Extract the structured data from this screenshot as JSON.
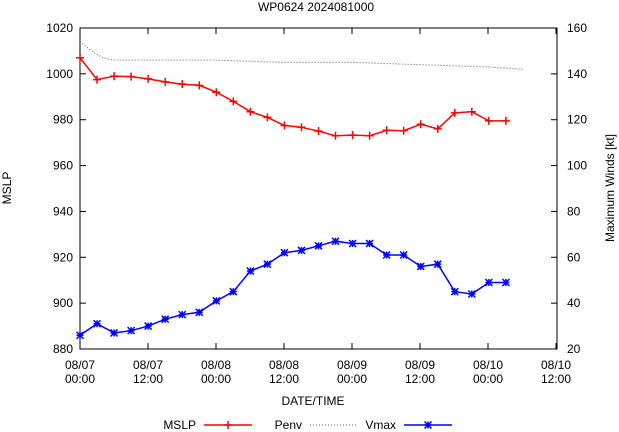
{
  "chart_data": {
    "type": "line",
    "title": "WP0624 2024081000",
    "xlabel": "DATE/TIME",
    "ylabel_left": "MSLP",
    "ylabel_right": "Maximum Winds [kt]",
    "ylim_left": [
      880,
      1020
    ],
    "ylim_right": [
      20,
      160
    ],
    "xlim_hours": [
      0,
      84
    ],
    "grid": false,
    "legend_position": "bottom",
    "yticks_left": [
      "880",
      "900",
      "920",
      "940",
      "960",
      "980",
      "1000",
      "1020"
    ],
    "yticks_right": [
      "20",
      "40",
      "60",
      "80",
      "100",
      "120",
      "140",
      "160"
    ],
    "xticks": [
      {
        "date": "08/07",
        "time": "00:00"
      },
      {
        "date": "08/07",
        "time": "12:00"
      },
      {
        "date": "08/08",
        "time": "00:00"
      },
      {
        "date": "08/08",
        "time": "12:00"
      },
      {
        "date": "08/09",
        "time": "00:00"
      },
      {
        "date": "08/09",
        "time": "12:00"
      },
      {
        "date": "08/10",
        "time": "00:00"
      },
      {
        "date": "08/10",
        "time": "12:00"
      }
    ],
    "legend": [
      "MSLP",
      "Penv",
      "Vmax"
    ],
    "series": [
      {
        "name": "MSLP",
        "axis": "left",
        "color": "#ff0000",
        "marker": "plus",
        "x_hours": [
          0,
          3,
          6,
          9,
          12,
          15,
          18,
          21,
          24,
          27,
          30,
          33,
          36,
          39,
          42,
          45,
          48,
          51,
          54,
          57,
          60,
          63,
          66,
          69,
          72,
          75
        ],
        "values": [
          1007,
          997.5,
          999,
          998.8,
          997.8,
          996.5,
          995.5,
          995,
          992,
          988,
          983.5,
          981,
          977.5,
          976.7,
          975,
          973,
          973.3,
          973,
          975.4,
          975.2,
          978,
          976,
          983,
          983.5,
          979.5,
          979.5
        ]
      },
      {
        "name": "Penv",
        "axis": "left",
        "color": "#555555",
        "style": "dotted",
        "x_hours": [
          0,
          2,
          4,
          6,
          12,
          24,
          36,
          48,
          60,
          72,
          78
        ],
        "values": [
          1014,
          1010,
          1007,
          1006,
          1006,
          1006,
          1005,
          1005,
          1004,
          1003,
          1002
        ]
      },
      {
        "name": "Vmax",
        "axis": "right",
        "color": "#0000ff",
        "marker": "star",
        "x_hours": [
          0,
          3,
          6,
          9,
          12,
          15,
          18,
          21,
          24,
          27,
          30,
          33,
          36,
          39,
          42,
          45,
          48,
          51,
          54,
          57,
          60,
          63,
          66,
          69,
          72,
          75
        ],
        "values": [
          26,
          31,
          27,
          28,
          30,
          33,
          35,
          36,
          41,
          45,
          54,
          57,
          62,
          63,
          65,
          67,
          66,
          66,
          61,
          61,
          56,
          57,
          45,
          44,
          49,
          49
        ]
      }
    ]
  }
}
